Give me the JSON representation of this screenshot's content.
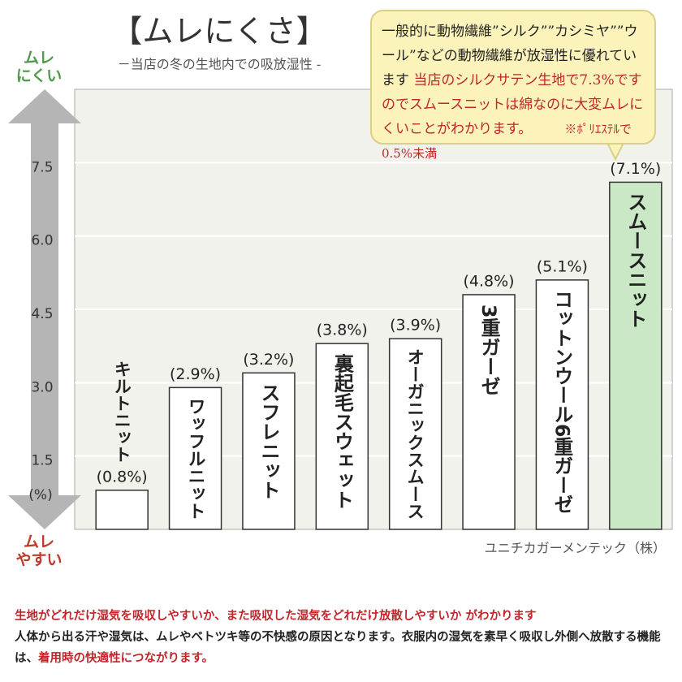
{
  "chart_data": {
    "type": "bar",
    "title": "【ムレにくさ】",
    "subtitle": "－当店の冬の生地内での吸放湿性 -",
    "categories": [
      "キルトニット",
      "ワッフルニット",
      "スフレニット",
      "裏起毛スウェット",
      "オーガニックスムース",
      "3重ガーゼ",
      "コットンウール6重ガーゼ",
      "スムースニット"
    ],
    "values": [
      0.8,
      2.9,
      3.2,
      3.8,
      3.9,
      4.8,
      5.1,
      7.1
    ],
    "value_labels": [
      "(0.8%)",
      "(2.9%)",
      "(3.2%)",
      "(3.8%)",
      "(3.9%)",
      "(4.8%)",
      "(5.1%)",
      "(7.1%)"
    ],
    "colors": [
      "#ffffff",
      "#ffffff",
      "#ffffff",
      "#ffffff",
      "#ffffff",
      "#ffffff",
      "#ffffff",
      "#cbe8c6"
    ],
    "ylim": [
      0,
      9
    ],
    "yticks": [
      1.5,
      {
        "value": 3,
        "label": "3.0"
      },
      4.5,
      {
        "value": 6,
        "label": "6.0"
      },
      7.5
    ],
    "y_unit": "(%)",
    "grid": true,
    "top_label": [
      "ムレ",
      "にくい"
    ],
    "bottom_label": [
      "ムレ",
      "やすい"
    ],
    "source": "ユニチカガーメンテック（株）"
  },
  "callout": {
    "plain": "一般的に動物繊維”シルク””カシミヤ””ウール”などの動物繊維が放湿性に優れています ",
    "red": "当店のシルクサテン生地で7.3%ですのでスムースニットは綿なのに大変ムレにくいことがわかります。",
    "note": "※ﾎﾟﾘｴｽﾃﾙで0.5%未満"
  },
  "footer": {
    "line1": "生地がどれだけ湿気を吸収しやすいか、また吸収した湿気をどれだけ放散しやすいか がわかります",
    "line2": "人体から出る汗や湿気は、ムレやベトツキ等の不快感の原因となります。衣服内の湿気を素早く吸収し外側へ放散する機能は、",
    "line2_red": "着用時の快適性につながります。"
  }
}
